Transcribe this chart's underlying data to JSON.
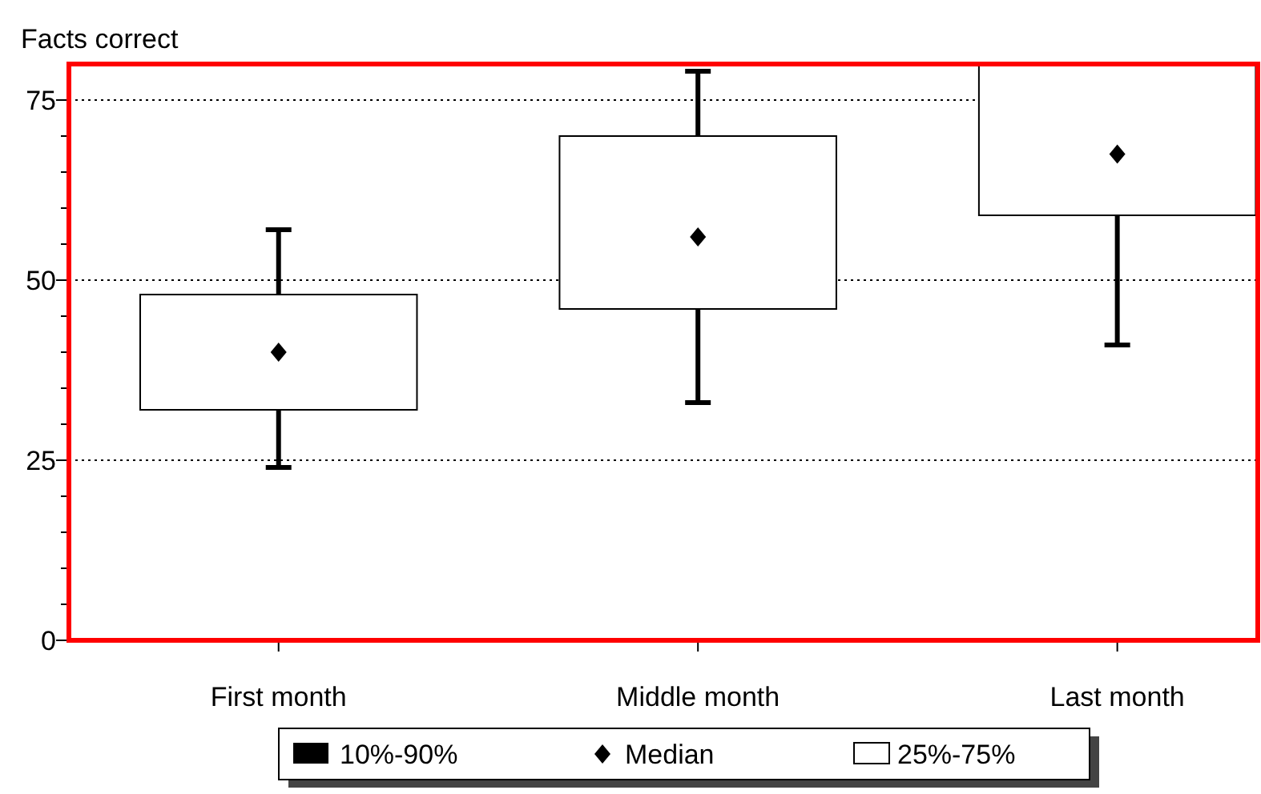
{
  "chart_data": {
    "type": "box",
    "ylabel": "Facts correct",
    "categories": [
      "First month",
      "Middle month",
      "Last month"
    ],
    "boxes": [
      {
        "low": 24,
        "q1": 32,
        "median": 40,
        "q3": 48,
        "high": 57
      },
      {
        "low": 33,
        "q1": 46,
        "median": 56,
        "q3": 70,
        "high": 79
      },
      {
        "low": 41,
        "q1": 59,
        "median": 67.5,
        "q3": 80,
        "high": 80
      }
    ],
    "ylim": [
      0,
      80
    ],
    "yticks": [
      0,
      {
        "value": 5,
        "label": null
      },
      {
        "value": 10,
        "label": null
      },
      {
        "value": 15,
        "label": null
      },
      {
        "value": 20,
        "label": null
      },
      25,
      {
        "value": 30,
        "label": null
      },
      {
        "value": 35,
        "label": null
      },
      {
        "value": 40,
        "label": null
      },
      {
        "value": 45,
        "label": null
      },
      50,
      {
        "value": 55,
        "label": null
      },
      {
        "value": 60,
        "label": null
      },
      {
        "value": 65,
        "label": null
      },
      {
        "value": 70,
        "label": null
      },
      75
    ],
    "grid": "y",
    "annotations": [
      "10%-90%",
      "Median",
      "25%-75%"
    ]
  }
}
